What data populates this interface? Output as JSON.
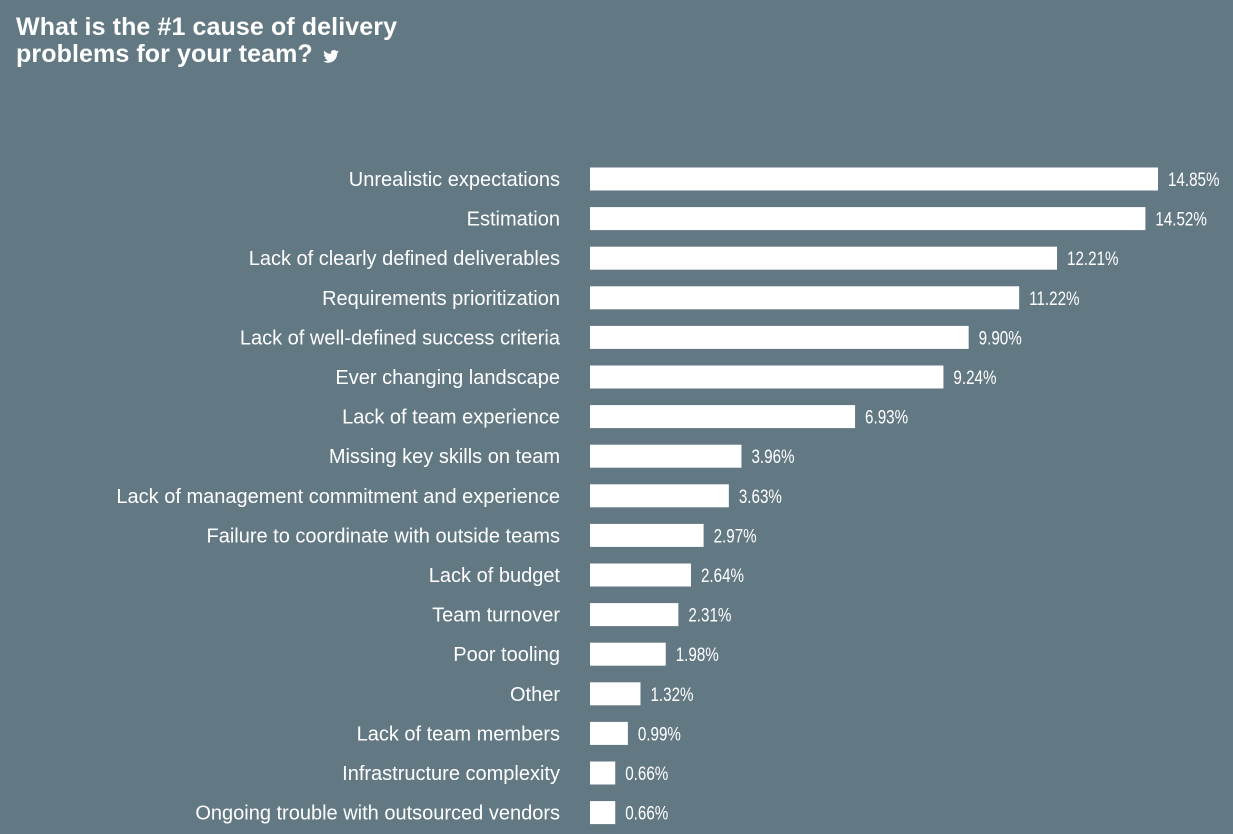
{
  "title_lines": [
    "What is the #1 cause of delivery",
    "problems for your team?"
  ],
  "title_icon": "twitter-icon",
  "colors": {
    "background": "#627883",
    "bar": "#ffffff",
    "text": "#ffffff"
  },
  "chart_data": {
    "type": "bar",
    "orientation": "horizontal",
    "title": "What is the #1 cause of delivery problems for your team?",
    "xlabel": "",
    "ylabel": "",
    "grid": false,
    "legend": "none",
    "xlim": [
      0,
      14.85
    ],
    "categories": [
      "Unrealistic expectations",
      "Estimation",
      "Lack of clearly defined deliverables",
      "Requirements prioritization",
      "Lack of well-defined success criteria",
      "Ever changing landscape",
      "Lack of team experience",
      "Missing key skills on team",
      "Lack of management commitment and experience",
      "Failure to coordinate with outside teams",
      "Lack of budget",
      "Team turnover",
      "Poor tooling",
      "Other",
      "Lack of team members",
      "Infrastructure complexity",
      "Ongoing trouble with outsourced vendors"
    ],
    "values": [
      14.85,
      14.52,
      12.21,
      11.22,
      9.9,
      9.24,
      6.93,
      3.96,
      3.63,
      2.97,
      2.64,
      2.31,
      1.98,
      1.32,
      0.99,
      0.66,
      0.66
    ],
    "value_labels": [
      "14.85%",
      "14.52%",
      "12.21%",
      "11.22%",
      "9.90%",
      "9.24%",
      "6.93%",
      "3.96%",
      "3.63%",
      "2.97%",
      "2.64%",
      "2.31%",
      "1.98%",
      "1.32%",
      "0.99%",
      "0.66%",
      "0.66%"
    ]
  }
}
